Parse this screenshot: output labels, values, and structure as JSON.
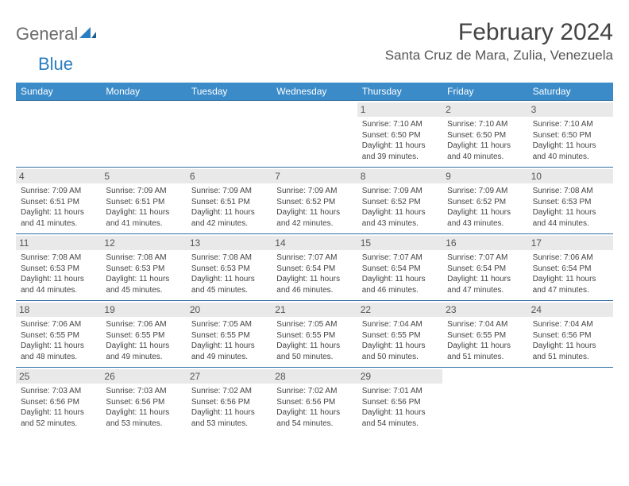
{
  "brand": {
    "part1": "General",
    "part2": "Blue",
    "logo_color": "#2a7dc1"
  },
  "title": "February 2024",
  "location": "Santa Cruz de Mara, Zulia, Venezuela",
  "colors": {
    "header_bg": "#3b8bc9",
    "header_text": "#ffffff",
    "row_border": "#2f6ea3",
    "daynum_bg": "#e9e9e9",
    "text": "#444444"
  },
  "weekdays": [
    "Sunday",
    "Monday",
    "Tuesday",
    "Wednesday",
    "Thursday",
    "Friday",
    "Saturday"
  ],
  "weeks": [
    [
      null,
      null,
      null,
      null,
      {
        "n": "1",
        "sr": "Sunrise: 7:10 AM",
        "ss": "Sunset: 6:50 PM",
        "dl": "Daylight: 11 hours and 39 minutes."
      },
      {
        "n": "2",
        "sr": "Sunrise: 7:10 AM",
        "ss": "Sunset: 6:50 PM",
        "dl": "Daylight: 11 hours and 40 minutes."
      },
      {
        "n": "3",
        "sr": "Sunrise: 7:10 AM",
        "ss": "Sunset: 6:50 PM",
        "dl": "Daylight: 11 hours and 40 minutes."
      }
    ],
    [
      {
        "n": "4",
        "sr": "Sunrise: 7:09 AM",
        "ss": "Sunset: 6:51 PM",
        "dl": "Daylight: 11 hours and 41 minutes."
      },
      {
        "n": "5",
        "sr": "Sunrise: 7:09 AM",
        "ss": "Sunset: 6:51 PM",
        "dl": "Daylight: 11 hours and 41 minutes."
      },
      {
        "n": "6",
        "sr": "Sunrise: 7:09 AM",
        "ss": "Sunset: 6:51 PM",
        "dl": "Daylight: 11 hours and 42 minutes."
      },
      {
        "n": "7",
        "sr": "Sunrise: 7:09 AM",
        "ss": "Sunset: 6:52 PM",
        "dl": "Daylight: 11 hours and 42 minutes."
      },
      {
        "n": "8",
        "sr": "Sunrise: 7:09 AM",
        "ss": "Sunset: 6:52 PM",
        "dl": "Daylight: 11 hours and 43 minutes."
      },
      {
        "n": "9",
        "sr": "Sunrise: 7:09 AM",
        "ss": "Sunset: 6:52 PM",
        "dl": "Daylight: 11 hours and 43 minutes."
      },
      {
        "n": "10",
        "sr": "Sunrise: 7:08 AM",
        "ss": "Sunset: 6:53 PM",
        "dl": "Daylight: 11 hours and 44 minutes."
      }
    ],
    [
      {
        "n": "11",
        "sr": "Sunrise: 7:08 AM",
        "ss": "Sunset: 6:53 PM",
        "dl": "Daylight: 11 hours and 44 minutes."
      },
      {
        "n": "12",
        "sr": "Sunrise: 7:08 AM",
        "ss": "Sunset: 6:53 PM",
        "dl": "Daylight: 11 hours and 45 minutes."
      },
      {
        "n": "13",
        "sr": "Sunrise: 7:08 AM",
        "ss": "Sunset: 6:53 PM",
        "dl": "Daylight: 11 hours and 45 minutes."
      },
      {
        "n": "14",
        "sr": "Sunrise: 7:07 AM",
        "ss": "Sunset: 6:54 PM",
        "dl": "Daylight: 11 hours and 46 minutes."
      },
      {
        "n": "15",
        "sr": "Sunrise: 7:07 AM",
        "ss": "Sunset: 6:54 PM",
        "dl": "Daylight: 11 hours and 46 minutes."
      },
      {
        "n": "16",
        "sr": "Sunrise: 7:07 AM",
        "ss": "Sunset: 6:54 PM",
        "dl": "Daylight: 11 hours and 47 minutes."
      },
      {
        "n": "17",
        "sr": "Sunrise: 7:06 AM",
        "ss": "Sunset: 6:54 PM",
        "dl": "Daylight: 11 hours and 47 minutes."
      }
    ],
    [
      {
        "n": "18",
        "sr": "Sunrise: 7:06 AM",
        "ss": "Sunset: 6:55 PM",
        "dl": "Daylight: 11 hours and 48 minutes."
      },
      {
        "n": "19",
        "sr": "Sunrise: 7:06 AM",
        "ss": "Sunset: 6:55 PM",
        "dl": "Daylight: 11 hours and 49 minutes."
      },
      {
        "n": "20",
        "sr": "Sunrise: 7:05 AM",
        "ss": "Sunset: 6:55 PM",
        "dl": "Daylight: 11 hours and 49 minutes."
      },
      {
        "n": "21",
        "sr": "Sunrise: 7:05 AM",
        "ss": "Sunset: 6:55 PM",
        "dl": "Daylight: 11 hours and 50 minutes."
      },
      {
        "n": "22",
        "sr": "Sunrise: 7:04 AM",
        "ss": "Sunset: 6:55 PM",
        "dl": "Daylight: 11 hours and 50 minutes."
      },
      {
        "n": "23",
        "sr": "Sunrise: 7:04 AM",
        "ss": "Sunset: 6:55 PM",
        "dl": "Daylight: 11 hours and 51 minutes."
      },
      {
        "n": "24",
        "sr": "Sunrise: 7:04 AM",
        "ss": "Sunset: 6:56 PM",
        "dl": "Daylight: 11 hours and 51 minutes."
      }
    ],
    [
      {
        "n": "25",
        "sr": "Sunrise: 7:03 AM",
        "ss": "Sunset: 6:56 PM",
        "dl": "Daylight: 11 hours and 52 minutes."
      },
      {
        "n": "26",
        "sr": "Sunrise: 7:03 AM",
        "ss": "Sunset: 6:56 PM",
        "dl": "Daylight: 11 hours and 53 minutes."
      },
      {
        "n": "27",
        "sr": "Sunrise: 7:02 AM",
        "ss": "Sunset: 6:56 PM",
        "dl": "Daylight: 11 hours and 53 minutes."
      },
      {
        "n": "28",
        "sr": "Sunrise: 7:02 AM",
        "ss": "Sunset: 6:56 PM",
        "dl": "Daylight: 11 hours and 54 minutes."
      },
      {
        "n": "29",
        "sr": "Sunrise: 7:01 AM",
        "ss": "Sunset: 6:56 PM",
        "dl": "Daylight: 11 hours and 54 minutes."
      },
      null,
      null
    ]
  ]
}
